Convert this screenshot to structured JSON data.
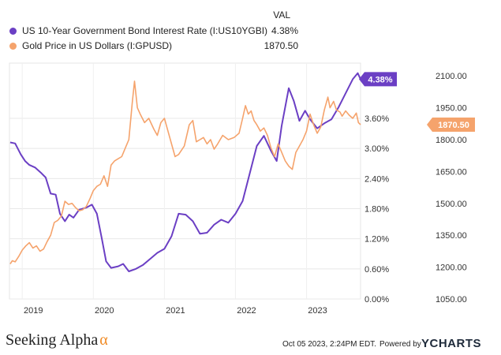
{
  "legend": {
    "val_header": "VAL",
    "series": [
      {
        "name": "US 10-Year Government Bond Interest Rate (I:US10YGBI)",
        "value": "4.38%",
        "color": "#6b3fc4"
      },
      {
        "name": "Gold Price in US Dollars (I:GPUSD)",
        "value": "1870.50",
        "color": "#f5a36c"
      }
    ]
  },
  "chart_data": {
    "type": "line",
    "x_tick_labels": [
      "2019",
      "2020",
      "2021",
      "2022",
      "2023"
    ],
    "y_left_tick_labels": [
      "0.00%",
      "0.60%",
      "1.20%",
      "1.80%",
      "2.40%",
      "3.00%",
      "3.60%"
    ],
    "y_right_tick_labels": [
      "1050.00",
      "1200.00",
      "1350.00",
      "1500.00",
      "1650.00",
      "1800.00",
      "1950.00",
      "2100.00"
    ],
    "x_range": [
      2018.82,
      2023.76
    ],
    "y_left_range": [
      0,
      4.7
    ],
    "y_right_range": [
      1050,
      2160
    ],
    "grid": "horizontal",
    "series": [
      {
        "name": "US 10-Year Government Bond Interest Rate (I:US10YGBI)",
        "axis": "left",
        "color": "#6b3fc4",
        "end_label": "4.38%",
        "points": [
          [
            2018.83,
            3.12
          ],
          [
            2018.9,
            3.1
          ],
          [
            2018.98,
            2.88
          ],
          [
            2019.04,
            2.75
          ],
          [
            2019.1,
            2.67
          ],
          [
            2019.18,
            2.62
          ],
          [
            2019.26,
            2.52
          ],
          [
            2019.33,
            2.42
          ],
          [
            2019.4,
            2.1
          ],
          [
            2019.47,
            2.08
          ],
          [
            2019.53,
            1.7
          ],
          [
            2019.6,
            1.55
          ],
          [
            2019.66,
            1.68
          ],
          [
            2019.72,
            1.62
          ],
          [
            2019.8,
            1.78
          ],
          [
            2019.9,
            1.82
          ],
          [
            2019.98,
            1.88
          ],
          [
            2020.05,
            1.7
          ],
          [
            2020.12,
            1.2
          ],
          [
            2020.18,
            0.75
          ],
          [
            2020.25,
            0.62
          ],
          [
            2020.35,
            0.65
          ],
          [
            2020.42,
            0.7
          ],
          [
            2020.5,
            0.55
          ],
          [
            2020.6,
            0.6
          ],
          [
            2020.7,
            0.68
          ],
          [
            2020.8,
            0.8
          ],
          [
            2020.9,
            0.92
          ],
          [
            2021.0,
            1.0
          ],
          [
            2021.1,
            1.25
          ],
          [
            2021.2,
            1.7
          ],
          [
            2021.3,
            1.68
          ],
          [
            2021.4,
            1.55
          ],
          [
            2021.5,
            1.3
          ],
          [
            2021.6,
            1.32
          ],
          [
            2021.7,
            1.48
          ],
          [
            2021.8,
            1.58
          ],
          [
            2021.9,
            1.52
          ],
          [
            2022.0,
            1.7
          ],
          [
            2022.1,
            1.95
          ],
          [
            2022.2,
            2.5
          ],
          [
            2022.3,
            3.05
          ],
          [
            2022.4,
            3.25
          ],
          [
            2022.5,
            2.95
          ],
          [
            2022.58,
            2.75
          ],
          [
            2022.65,
            3.45
          ],
          [
            2022.75,
            4.2
          ],
          [
            2022.82,
            3.95
          ],
          [
            2022.9,
            3.55
          ],
          [
            2022.98,
            3.75
          ],
          [
            2023.05,
            3.58
          ],
          [
            2023.15,
            3.4
          ],
          [
            2023.25,
            3.5
          ],
          [
            2023.35,
            3.58
          ],
          [
            2023.45,
            3.82
          ],
          [
            2023.55,
            4.1
          ],
          [
            2023.65,
            4.38
          ],
          [
            2023.72,
            4.5
          ],
          [
            2023.76,
            4.38
          ]
        ]
      },
      {
        "name": "Gold Price in US Dollars (I:GPUSD)",
        "axis": "right",
        "color": "#f5a36c",
        "end_label": "1870.50",
        "points": [
          [
            2018.83,
            1215
          ],
          [
            2018.86,
            1230
          ],
          [
            2018.9,
            1225
          ],
          [
            2018.95,
            1250
          ],
          [
            2019.0,
            1280
          ],
          [
            2019.05,
            1300
          ],
          [
            2019.1,
            1315
          ],
          [
            2019.15,
            1290
          ],
          [
            2019.2,
            1300
          ],
          [
            2019.25,
            1275
          ],
          [
            2019.3,
            1285
          ],
          [
            2019.35,
            1320
          ],
          [
            2019.4,
            1350
          ],
          [
            2019.45,
            1410
          ],
          [
            2019.5,
            1420
          ],
          [
            2019.55,
            1440
          ],
          [
            2019.6,
            1510
          ],
          [
            2019.65,
            1495
          ],
          [
            2019.7,
            1500
          ],
          [
            2019.75,
            1480
          ],
          [
            2019.8,
            1465
          ],
          [
            2019.85,
            1470
          ],
          [
            2019.9,
            1485
          ],
          [
            2019.95,
            1520
          ],
          [
            2020.0,
            1560
          ],
          [
            2020.05,
            1580
          ],
          [
            2020.1,
            1590
          ],
          [
            2020.15,
            1630
          ],
          [
            2020.2,
            1580
          ],
          [
            2020.25,
            1680
          ],
          [
            2020.3,
            1700
          ],
          [
            2020.35,
            1710
          ],
          [
            2020.4,
            1720
          ],
          [
            2020.45,
            1760
          ],
          [
            2020.5,
            1800
          ],
          [
            2020.55,
            1980
          ],
          [
            2020.58,
            2075
          ],
          [
            2020.62,
            1950
          ],
          [
            2020.66,
            1920
          ],
          [
            2020.72,
            1880
          ],
          [
            2020.78,
            1900
          ],
          [
            2020.85,
            1850
          ],
          [
            2020.9,
            1820
          ],
          [
            2020.95,
            1880
          ],
          [
            2021.0,
            1900
          ],
          [
            2021.05,
            1840
          ],
          [
            2021.1,
            1780
          ],
          [
            2021.15,
            1720
          ],
          [
            2021.2,
            1730
          ],
          [
            2021.28,
            1770
          ],
          [
            2021.35,
            1870
          ],
          [
            2021.4,
            1890
          ],
          [
            2021.45,
            1790
          ],
          [
            2021.5,
            1800
          ],
          [
            2021.55,
            1810
          ],
          [
            2021.6,
            1780
          ],
          [
            2021.65,
            1800
          ],
          [
            2021.7,
            1755
          ],
          [
            2021.75,
            1780
          ],
          [
            2021.82,
            1820
          ],
          [
            2021.9,
            1800
          ],
          [
            2021.98,
            1810
          ],
          [
            2022.05,
            1830
          ],
          [
            2022.1,
            1900
          ],
          [
            2022.14,
            1960
          ],
          [
            2022.18,
            1920
          ],
          [
            2022.22,
            1935
          ],
          [
            2022.26,
            1890
          ],
          [
            2022.3,
            1870
          ],
          [
            2022.35,
            1840
          ],
          [
            2022.4,
            1855
          ],
          [
            2022.45,
            1820
          ],
          [
            2022.5,
            1760
          ],
          [
            2022.55,
            1720
          ],
          [
            2022.6,
            1780
          ],
          [
            2022.65,
            1740
          ],
          [
            2022.7,
            1700
          ],
          [
            2022.75,
            1675
          ],
          [
            2022.8,
            1660
          ],
          [
            2022.85,
            1740
          ],
          [
            2022.9,
            1770
          ],
          [
            2022.95,
            1800
          ],
          [
            2023.0,
            1840
          ],
          [
            2023.05,
            1920
          ],
          [
            2023.1,
            1870
          ],
          [
            2023.15,
            1830
          ],
          [
            2023.2,
            1860
          ],
          [
            2023.25,
            1940
          ],
          [
            2023.3,
            2000
          ],
          [
            2023.33,
            1950
          ],
          [
            2023.38,
            1980
          ],
          [
            2023.42,
            1940
          ],
          [
            2023.47,
            1930
          ],
          [
            2023.5,
            1910
          ],
          [
            2023.55,
            1935
          ],
          [
            2023.6,
            1915
          ],
          [
            2023.65,
            1900
          ],
          [
            2023.7,
            1925
          ],
          [
            2023.73,
            1880
          ],
          [
            2023.76,
            1870.5
          ]
        ]
      }
    ]
  },
  "footer": {
    "brand_left": "Seeking Alpha",
    "brand_left_symbol": "α",
    "date": "Oct 05 2023, 2:24PM EDT.",
    "powered": "Powered by",
    "brand_right": "YCHARTS"
  }
}
